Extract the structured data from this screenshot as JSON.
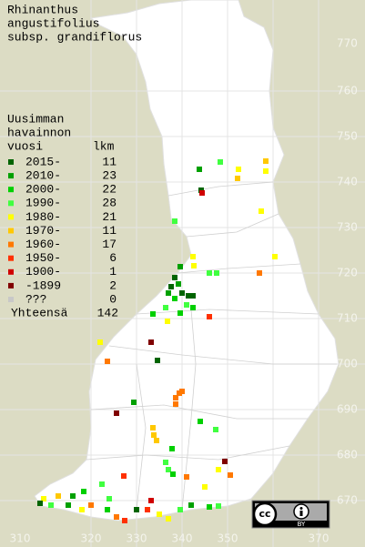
{
  "title": [
    "Rhinanthus",
    "angustifolius",
    "subsp. grandiflorus"
  ],
  "legend": {
    "header": [
      "Uusimman",
      "havainnon",
      "vuosi"
    ],
    "count_header": "lkm",
    "items": [
      {
        "label": "2015-",
        "count": 11,
        "color": "#006400"
      },
      {
        "label": "2010-",
        "count": 23,
        "color": "#00a000"
      },
      {
        "label": "2000-",
        "count": 22,
        "color": "#00d000"
      },
      {
        "label": "1990-",
        "count": 28,
        "color": "#40ff40"
      },
      {
        "label": "1980-",
        "count": 21,
        "color": "#ffff00"
      },
      {
        "label": "1970-",
        "count": 11,
        "color": "#ffc800"
      },
      {
        "label": "1960-",
        "count": 17,
        "color": "#ff7800"
      },
      {
        "label": "1950-",
        "count": 6,
        "color": "#ff3000"
      },
      {
        "label": "1900-",
        "count": 1,
        "color": "#d00000"
      },
      {
        "label": "-1899",
        "count": 2,
        "color": "#800000"
      },
      {
        "label": "???",
        "count": 0,
        "color": "#c8c8c8"
      }
    ],
    "total": {
      "label": "Yhteensä",
      "count": 142
    }
  },
  "grid_labels": {
    "north": [
      "770",
      "760",
      "750",
      "740",
      "730",
      "720",
      "710",
      "700",
      "690",
      "680",
      "670"
    ],
    "east": [
      "310",
      "320",
      "330",
      "340",
      "350",
      "370"
    ]
  },
  "license": [
    "cc",
    "BY"
  ]
}
